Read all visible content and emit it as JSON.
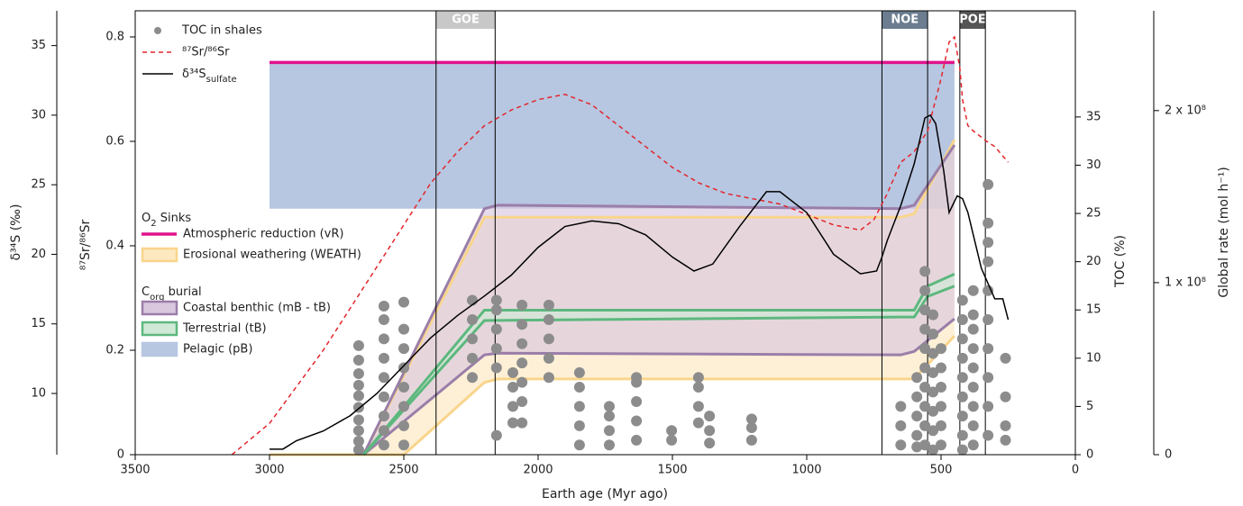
{
  "chart_data": {
    "type": "line",
    "xlabel": "Earth age (Myr ago)",
    "xlim": [
      3500,
      0
    ],
    "xticks": [
      3500,
      3000,
      2500,
      2000,
      1500,
      1000,
      500,
      0
    ],
    "axes": {
      "d34s": {
        "label": "δ³⁴S (‰)",
        "ylim": [
          5.6,
          37.5
        ],
        "yticks": [
          10,
          15,
          20,
          25,
          30,
          35
        ]
      },
      "sr": {
        "label": "⁸⁷Sr/⁸⁶Sr",
        "ylim": [
          0,
          0.85
        ],
        "yticks": [
          0,
          0.2,
          0.4,
          0.6,
          0.8
        ]
      },
      "toc": {
        "label": "TOC (%)",
        "ylim": [
          0,
          46
        ],
        "yticks": [
          0,
          5,
          10,
          15,
          20,
          25,
          30,
          35
        ]
      },
      "rate": {
        "label": "Global rate (mol h⁻¹)",
        "ylim": [
          0,
          258000000
        ],
        "yticks": [
          0,
          {
            "value": 100000000,
            "label": "1 x 10⁸"
          },
          {
            "value": 200000000,
            "label": "2 x 10⁸"
          }
        ]
      }
    },
    "events": [
      {
        "label": "GOE",
        "start": 2380,
        "end": 2160,
        "color": "#c8c8c8"
      },
      {
        "label": "NOE",
        "start": 720,
        "end": 550,
        "color": "#6b7d8f"
      },
      {
        "label": "POE",
        "start": 430,
        "end": 335,
        "color": "#555555"
      }
    ],
    "series": [
      {
        "name": "TOC in shales",
        "type": "scatter",
        "axis": "toc",
        "color": "#8c8c8c",
        "x": [
          2668,
          2668,
          2668,
          2668,
          2668,
          2668,
          2668,
          2668,
          2668,
          2668,
          2574,
          2574,
          2574,
          2574,
          2574,
          2574,
          2574,
          2574,
          2574,
          2500,
          2500,
          2500,
          2500,
          2500,
          2500,
          2500,
          2500,
          2245,
          2245,
          2245,
          2245,
          2245,
          2155,
          2155,
          2155,
          2155,
          2155,
          2155,
          2094,
          2094,
          2094,
          2094,
          2060,
          2060,
          2060,
          2060,
          2060,
          2060,
          2060,
          1960,
          1960,
          1960,
          1960,
          1960,
          1846,
          1846,
          1846,
          1846,
          1846,
          1735,
          1735,
          1735,
          1735,
          1634,
          1634,
          1634,
          1634,
          1634,
          1503,
          1503,
          1403,
          1403,
          1403,
          1403,
          1362,
          1362,
          1362,
          1205,
          1205,
          1205,
          650,
          650,
          650,
          590,
          590,
          590,
          590,
          590,
          560,
          560,
          560,
          560,
          560,
          560,
          560,
          560,
          560,
          560,
          530,
          530,
          530,
          530,
          530,
          530,
          530,
          530,
          500,
          500,
          500,
          500,
          500,
          500,
          420,
          420,
          420,
          420,
          420,
          420,
          420,
          420,
          420,
          380,
          380,
          380,
          380,
          380,
          380,
          380,
          380,
          380,
          325,
          325,
          325,
          325,
          325,
          325,
          325,
          325,
          325,
          325,
          260,
          260,
          260,
          260
        ],
        "values": [
          0.5,
          1.4,
          2.5,
          3.6,
          4.9,
          6.1,
          7.2,
          8.4,
          9.8,
          11.3,
          1.0,
          2.5,
          4.0,
          6.0,
          8.0,
          10.0,
          12.0,
          14.0,
          15.4,
          1.0,
          3.0,
          5.0,
          7.0,
          9.0,
          11.0,
          13.0,
          15.8,
          8.0,
          10.0,
          12.0,
          14.0,
          16.0,
          2.0,
          9.0,
          11.0,
          13.0,
          15.0,
          16.0,
          3.3,
          5.0,
          7.0,
          8.5,
          3.3,
          5.5,
          7.5,
          9.5,
          11.5,
          13.5,
          15.5,
          8.0,
          10.0,
          12.0,
          14.0,
          15.5,
          1.0,
          3.0,
          5.0,
          7.0,
          8.5,
          1.0,
          2.5,
          4.0,
          5.0,
          1.5,
          3.5,
          5.5,
          7.5,
          8.0,
          1.5,
          2.5,
          3.3,
          5.0,
          7.0,
          8.0,
          1.2,
          2.5,
          4.0,
          1.5,
          2.8,
          3.7,
          1.0,
          3.0,
          5.0,
          0.8,
          2.0,
          4.0,
          6.0,
          8.0,
          1.0,
          3.0,
          5.0,
          7.0,
          9.0,
          11.0,
          13.0,
          15.0,
          17.0,
          19.0,
          0.5,
          2.5,
          4.5,
          6.5,
          8.5,
          10.5,
          12.5,
          14.5,
          1.0,
          3.0,
          5.0,
          7.0,
          9.0,
          11.0,
          0.5,
          2.0,
          4.0,
          6.0,
          8.0,
          10.0,
          12.0,
          14.0,
          16.0,
          1.0,
          3.0,
          5.0,
          7.0,
          9.0,
          11.0,
          13.0,
          14.5,
          17.0,
          2.0,
          5.0,
          8.0,
          11.0,
          14.0,
          17.0,
          20.0,
          22.0,
          24.0,
          28.0,
          1.5,
          3.0,
          6.0,
          10.0
        ]
      },
      {
        "name": "⁸⁷Sr/⁸⁶Sr",
        "type": "line",
        "axis": "sr",
        "color": "#e3262b",
        "dashed": true,
        "x": [
          3140,
          3000,
          2900,
          2800,
          2700,
          2600,
          2500,
          2400,
          2300,
          2200,
          2100,
          2000,
          1900,
          1800,
          1700,
          1600,
          1500,
          1400,
          1300,
          1200,
          1100,
          1000,
          900,
          800,
          750,
          700,
          650,
          600,
          550,
          500,
          470,
          450,
          430,
          420,
          400,
          380,
          330,
          300,
          250
        ],
        "values": [
          0,
          0.06,
          0.13,
          0.2,
          0.28,
          0.36,
          0.44,
          0.52,
          0.58,
          0.63,
          0.66,
          0.68,
          0.69,
          0.67,
          0.63,
          0.59,
          0.55,
          0.52,
          0.5,
          0.49,
          0.48,
          0.46,
          0.44,
          0.43,
          0.45,
          0.5,
          0.56,
          0.58,
          0.62,
          0.72,
          0.79,
          0.8,
          0.74,
          0.68,
          0.63,
          0.62,
          0.6,
          0.59,
          0.56
        ]
      },
      {
        "name": [
          {
            "text": "δ³⁴S"
          },
          {
            "text": "sulfate",
            "sub": true
          }
        ],
        "type": "line",
        "axis": "d34s",
        "color": "#000000",
        "x": [
          3000,
          2950,
          2900,
          2800,
          2700,
          2600,
          2500,
          2400,
          2300,
          2200,
          2100,
          2000,
          1900,
          1800,
          1700,
          1600,
          1500,
          1420,
          1350,
          1250,
          1150,
          1100,
          1000,
          900,
          800,
          740,
          720,
          700,
          650,
          600,
          560,
          540,
          520,
          490,
          470,
          440,
          420,
          400,
          350,
          300,
          270,
          250
        ],
        "values": [
          6.0,
          6.0,
          6.6,
          7.3,
          8.4,
          10.0,
          12.0,
          14.0,
          15.6,
          17.0,
          18.5,
          20.5,
          22.0,
          22.4,
          22.2,
          21.4,
          19.8,
          18.8,
          19.3,
          22.0,
          24.5,
          24.5,
          23.0,
          20.0,
          18.6,
          18.8,
          19.8,
          21.0,
          23.5,
          26.5,
          29.8,
          30.0,
          29.4,
          26.0,
          23.0,
          24.2,
          24.0,
          23.0,
          19.0,
          16.8,
          16.8,
          15.3
        ]
      }
    ],
    "groups": [
      {
        "title": [
          {
            "text": "O"
          },
          {
            "text": "2",
            "sub": true
          },
          {
            "text": " Sinks"
          }
        ],
        "series": [
          {
            "name": "Atmospheric reduction (vR)",
            "type": "line",
            "axis": "rate",
            "color": "#e0138c",
            "x": [
              3000,
              450
            ],
            "values": [
              228000000,
              228000000
            ]
          },
          {
            "name": "Erosional weathering (WEATH)",
            "type": "band",
            "axis": "rate",
            "color": "#f9d58c",
            "fill": "#fde8c0",
            "x": [
              3000,
              2650,
              2500,
              2200,
              2150,
              650,
              600,
              450
            ],
            "lower": [
              0,
              0,
              0,
              42000000,
              44000000,
              44000000,
              44000000,
              69000000
            ],
            "upper": [
              0,
              0,
              46000000,
              138000000,
              138000000,
              138000000,
              140000000,
              183000000
            ]
          }
        ]
      },
      {
        "title": [
          {
            "text": "C"
          },
          {
            "text": "org",
            "sub": true
          },
          {
            "text": " burial"
          }
        ],
        "series": [
          {
            "name": "Coastal benthic (mB - tB)",
            "type": "band",
            "axis": "rate",
            "color": "#9a7ea9",
            "fill": "#d9c7de",
            "x": [
              2650,
              2200,
              2150,
              650,
              600,
              450
            ],
            "lower": [
              0,
              58000000,
              59000000,
              58000000,
              60000000,
              79000000
            ],
            "upper": [
              0,
              143000000,
              145000000,
              143000000,
              145000000,
              180000000
            ]
          },
          {
            "name": "Terrestrial (tB)",
            "type": "band",
            "axis": "rate",
            "color": "#5db87e",
            "fill": "#cfe9d6",
            "x": [
              2650,
              2200,
              650,
              600,
              550,
              450
            ],
            "lower": [
              0,
              78000000,
              80000000,
              80000000,
              92000000,
              98000000
            ],
            "upper": [
              0,
              84000000,
              84000000,
              84000000,
              98000000,
              105000000
            ]
          },
          {
            "name": "Pelagic (pB)",
            "type": "band",
            "axis": "rate",
            "color": "#b7c6e1",
            "fill": "#b7c6e1",
            "x": [
              3000,
              450
            ],
            "lower": [
              143000000,
              143000000
            ],
            "upper": [
              228000000,
              228000000
            ]
          }
        ]
      }
    ]
  }
}
